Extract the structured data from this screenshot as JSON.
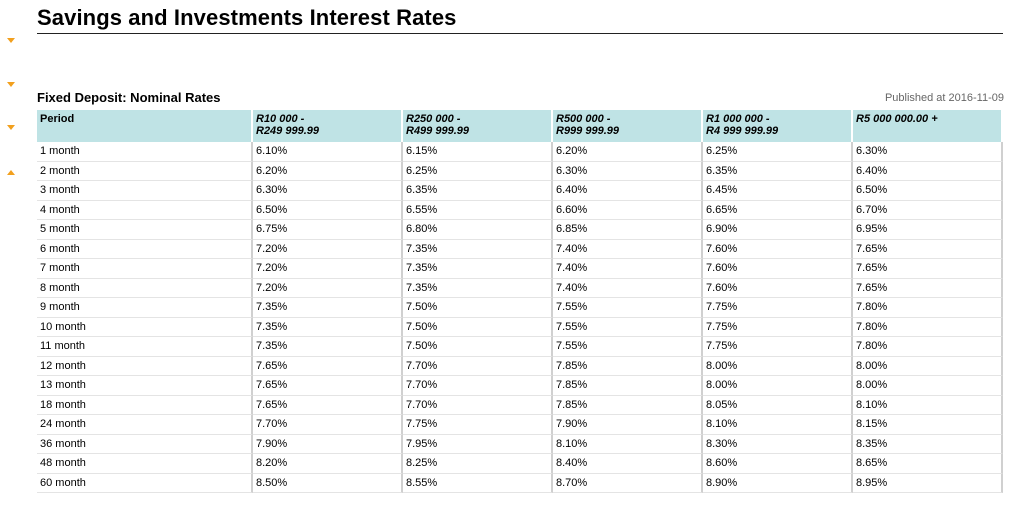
{
  "page": {
    "title": "Savings and Investments Interest Rates"
  },
  "sidebar": {
    "arrows": [
      {
        "name": "collapse-arrow-icon",
        "direction": "down"
      },
      {
        "name": "collapse-arrow-icon",
        "direction": "down"
      },
      {
        "name": "collapse-arrow-icon",
        "direction": "down"
      },
      {
        "name": "expand-arrow-icon",
        "direction": "up"
      }
    ],
    "accent_color": "#f2a01e"
  },
  "section": {
    "title": "Fixed Deposit: Nominal Rates",
    "published": "Published at 2016-11-09"
  },
  "table": {
    "header_color": "#bfe3e5",
    "columns": [
      {
        "line1": "Period",
        "line2": ""
      },
      {
        "line1": "R10 000 -",
        "line2": "R249 999.99"
      },
      {
        "line1": "R250 000 -",
        "line2": "R499 999.99"
      },
      {
        "line1": "R500 000 -",
        "line2": "R999 999.99"
      },
      {
        "line1": "R1 000 000 -",
        "line2": "R4 999 999.99"
      },
      {
        "line1": "R5 000 000.00 +",
        "line2": ""
      }
    ],
    "rows": [
      [
        "1 month",
        "6.10%",
        "6.15%",
        "6.20%",
        "6.25%",
        "6.30%"
      ],
      [
        "2 month",
        "6.20%",
        "6.25%",
        "6.30%",
        "6.35%",
        "6.40%"
      ],
      [
        "3 month",
        "6.30%",
        "6.35%",
        "6.40%",
        "6.45%",
        "6.50%"
      ],
      [
        "4 month",
        "6.50%",
        "6.55%",
        "6.60%",
        "6.65%",
        "6.70%"
      ],
      [
        "5 month",
        "6.75%",
        "6.80%",
        "6.85%",
        "6.90%",
        "6.95%"
      ],
      [
        "6 month",
        "7.20%",
        "7.35%",
        "7.40%",
        "7.60%",
        "7.65%"
      ],
      [
        "7 month",
        "7.20%",
        "7.35%",
        "7.40%",
        "7.60%",
        "7.65%"
      ],
      [
        "8 month",
        "7.20%",
        "7.35%",
        "7.40%",
        "7.60%",
        "7.65%"
      ],
      [
        "9 month",
        "7.35%",
        "7.50%",
        "7.55%",
        "7.75%",
        "7.80%"
      ],
      [
        "10 month",
        "7.35%",
        "7.50%",
        "7.55%",
        "7.75%",
        "7.80%"
      ],
      [
        "11 month",
        "7.35%",
        "7.50%",
        "7.55%",
        "7.75%",
        "7.80%"
      ],
      [
        "12 month",
        "7.65%",
        "7.70%",
        "7.85%",
        "8.00%",
        "8.00%"
      ],
      [
        "13 month",
        "7.65%",
        "7.70%",
        "7.85%",
        "8.00%",
        "8.00%"
      ],
      [
        "18 month",
        "7.65%",
        "7.70%",
        "7.85%",
        "8.05%",
        "8.10%"
      ],
      [
        "24 month",
        "7.70%",
        "7.75%",
        "7.90%",
        "8.10%",
        "8.15%"
      ],
      [
        "36 month",
        "7.90%",
        "7.95%",
        "8.10%",
        "8.30%",
        "8.35%"
      ],
      [
        "48 month",
        "8.20%",
        "8.25%",
        "8.40%",
        "8.60%",
        "8.65%"
      ],
      [
        "60 month",
        "8.50%",
        "8.55%",
        "8.70%",
        "8.90%",
        "8.95%"
      ]
    ]
  }
}
